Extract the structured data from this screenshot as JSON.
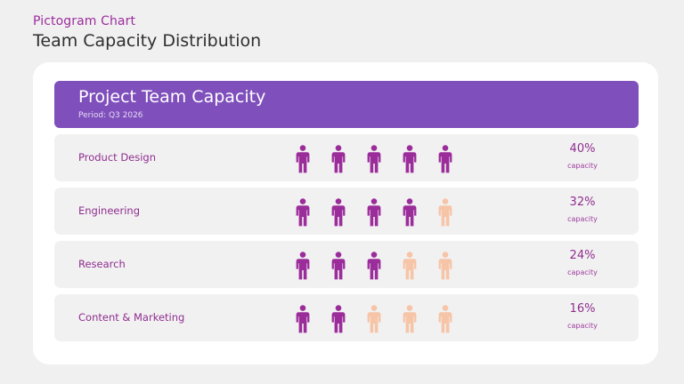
{
  "eyebrow": "Pictogram Chart",
  "page_title": "Team Capacity Distribution",
  "colors": {
    "filled": "#9b2d9b",
    "empty": "#f6c4a6",
    "header": "#7f4fbc"
  },
  "chart_data": {
    "type": "pictogram",
    "title": "Project Team Capacity",
    "subtitle": "Period: Q3 2026",
    "icons_per_row": 5,
    "icon": "person-icon",
    "rows": [
      {
        "label": "Product Design",
        "filled": 5,
        "percent": "40%",
        "value": 40,
        "unit": "capacity"
      },
      {
        "label": "Engineering",
        "filled": 4,
        "percent": "32%",
        "value": 32,
        "unit": "capacity"
      },
      {
        "label": "Research",
        "filled": 3,
        "percent": "24%",
        "value": 24,
        "unit": "capacity"
      },
      {
        "label": "Content & Marketing",
        "filled": 2,
        "percent": "16%",
        "value": 16,
        "unit": "capacity"
      }
    ]
  }
}
